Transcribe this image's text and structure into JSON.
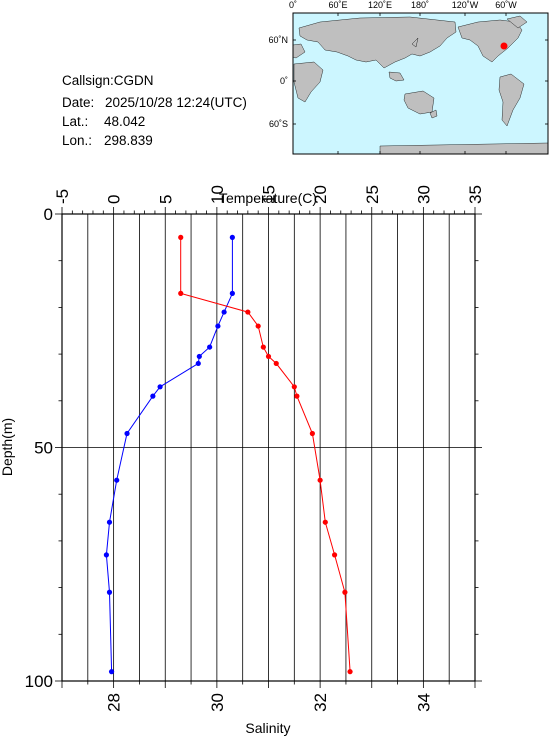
{
  "station": {
    "callsign_label": "Callsign:",
    "callsign": "CGDN",
    "date_label": "Date:",
    "date": "2025/10/28 12:24(UTC)",
    "lat_label": "Lat.:",
    "lat": "48.042",
    "lon_label": "Lon.:",
    "lon": "298.839"
  },
  "map": {
    "top_labels": [
      "0˚",
      "60˚E",
      "120˚E",
      "180˚",
      "120˚W",
      "60˚W"
    ],
    "side_labels": [
      "60˚N",
      "0˚",
      "60˚S"
    ],
    "marker_color": "#ff0000",
    "ocean_color": "#ccf6ff",
    "land_color": "#bfbfbf"
  },
  "chart_data": {
    "type": "line",
    "x_top_label": "Temperature(C)",
    "x_bottom_label": "Salinity",
    "ylabel": "Depth(m)",
    "temperature_axis": {
      "min": -5,
      "max": 35,
      "ticks": [
        "-5",
        "0",
        "5",
        "10",
        "15",
        "20",
        "25",
        "30",
        "35"
      ]
    },
    "salinity_axis": {
      "min": 27,
      "max": 35,
      "ticks": [
        "28",
        "30",
        "32",
        "34"
      ]
    },
    "depth_axis": {
      "min": 0,
      "max": 100,
      "ticks": [
        "0",
        "50",
        "100"
      ]
    },
    "series": [
      {
        "color": "#0000ff",
        "axis": "temperature",
        "points": [
          [
            11.5,
            5
          ],
          [
            11.5,
            17
          ],
          [
            10.7,
            21
          ],
          [
            10.1,
            24
          ],
          [
            9.3,
            28.5
          ],
          [
            8.3,
            30.5
          ],
          [
            8.2,
            32
          ],
          [
            4.5,
            37
          ],
          [
            3.8,
            39
          ],
          [
            1.3,
            47
          ],
          [
            0.3,
            57
          ],
          [
            -0.4,
            66
          ],
          [
            -0.7,
            73
          ],
          [
            -0.4,
            81
          ],
          [
            -0.2,
            98
          ]
        ]
      },
      {
        "color": "#ff0000",
        "axis": "salinity",
        "points": [
          [
            29.3,
            5
          ],
          [
            29.3,
            17
          ],
          [
            30.6,
            21
          ],
          [
            30.8,
            24
          ],
          [
            30.9,
            28.5
          ],
          [
            31.0,
            30.5
          ],
          [
            31.15,
            32
          ],
          [
            31.5,
            37
          ],
          [
            31.55,
            39
          ],
          [
            31.85,
            47
          ],
          [
            32.0,
            57
          ],
          [
            32.1,
            66
          ],
          [
            32.28,
            73
          ],
          [
            32.48,
            81
          ],
          [
            32.58,
            98
          ]
        ]
      }
    ]
  }
}
